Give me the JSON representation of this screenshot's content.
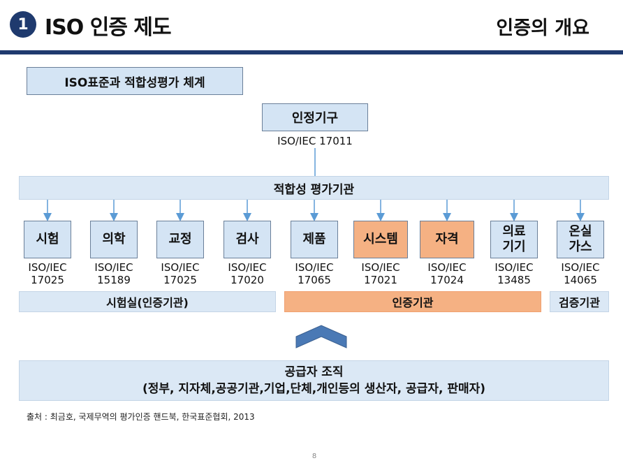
{
  "header": {
    "number": "1",
    "title": "ISO 인증 제도",
    "right_title": "인증의 개요",
    "accent": "#1f3a6e"
  },
  "system_label": "ISO표준과 적합성평가 체계",
  "root": {
    "label": "인정기구",
    "code": "ISO/IEC 17011"
  },
  "bar": {
    "label": "적합성 평가기관"
  },
  "children": [
    {
      "label": "시험",
      "code_a": "ISO/IEC",
      "code_b": "17025"
    },
    {
      "label": "의학",
      "code_a": "ISO/IEC",
      "code_b": "15189"
    },
    {
      "label": "교정",
      "code_a": "ISO/IEC",
      "code_b": "17025"
    },
    {
      "label": "검사",
      "code_a": "ISO/IEC",
      "code_b": "17020"
    },
    {
      "label": "제품",
      "code_a": "ISO/IEC",
      "code_b": "17065"
    },
    {
      "label": "시스템",
      "code_a": "ISO/IEC",
      "code_b": "17021"
    },
    {
      "label": "자격",
      "code_a": "ISO/IEC",
      "code_b": "17024"
    },
    {
      "label_a": "의료",
      "label_b": "기기",
      "code_a": "ISO/IEC",
      "code_b": "13485"
    },
    {
      "label_a": "온실",
      "label_b": "가스",
      "code_a": "ISO/IEC",
      "code_b": "14065"
    }
  ],
  "groups": {
    "lab": "시험실(인증기관)",
    "cert": "인증기관",
    "verify": "검증기관"
  },
  "supplier": {
    "line1": "공급자 조직",
    "line2": "(정부, 지자체,공공기관,기업,단체,개인등의 생산자, 공급자, 판매자)"
  },
  "source": "출처 : 최금호, 국제무역의 평가인증 핸드북, 한국표준협회, 2013",
  "page_number": "8",
  "colors": {
    "box_fill": "#d4e4f4",
    "highlight": "#f5b183",
    "connector": "#5b9bd5"
  }
}
